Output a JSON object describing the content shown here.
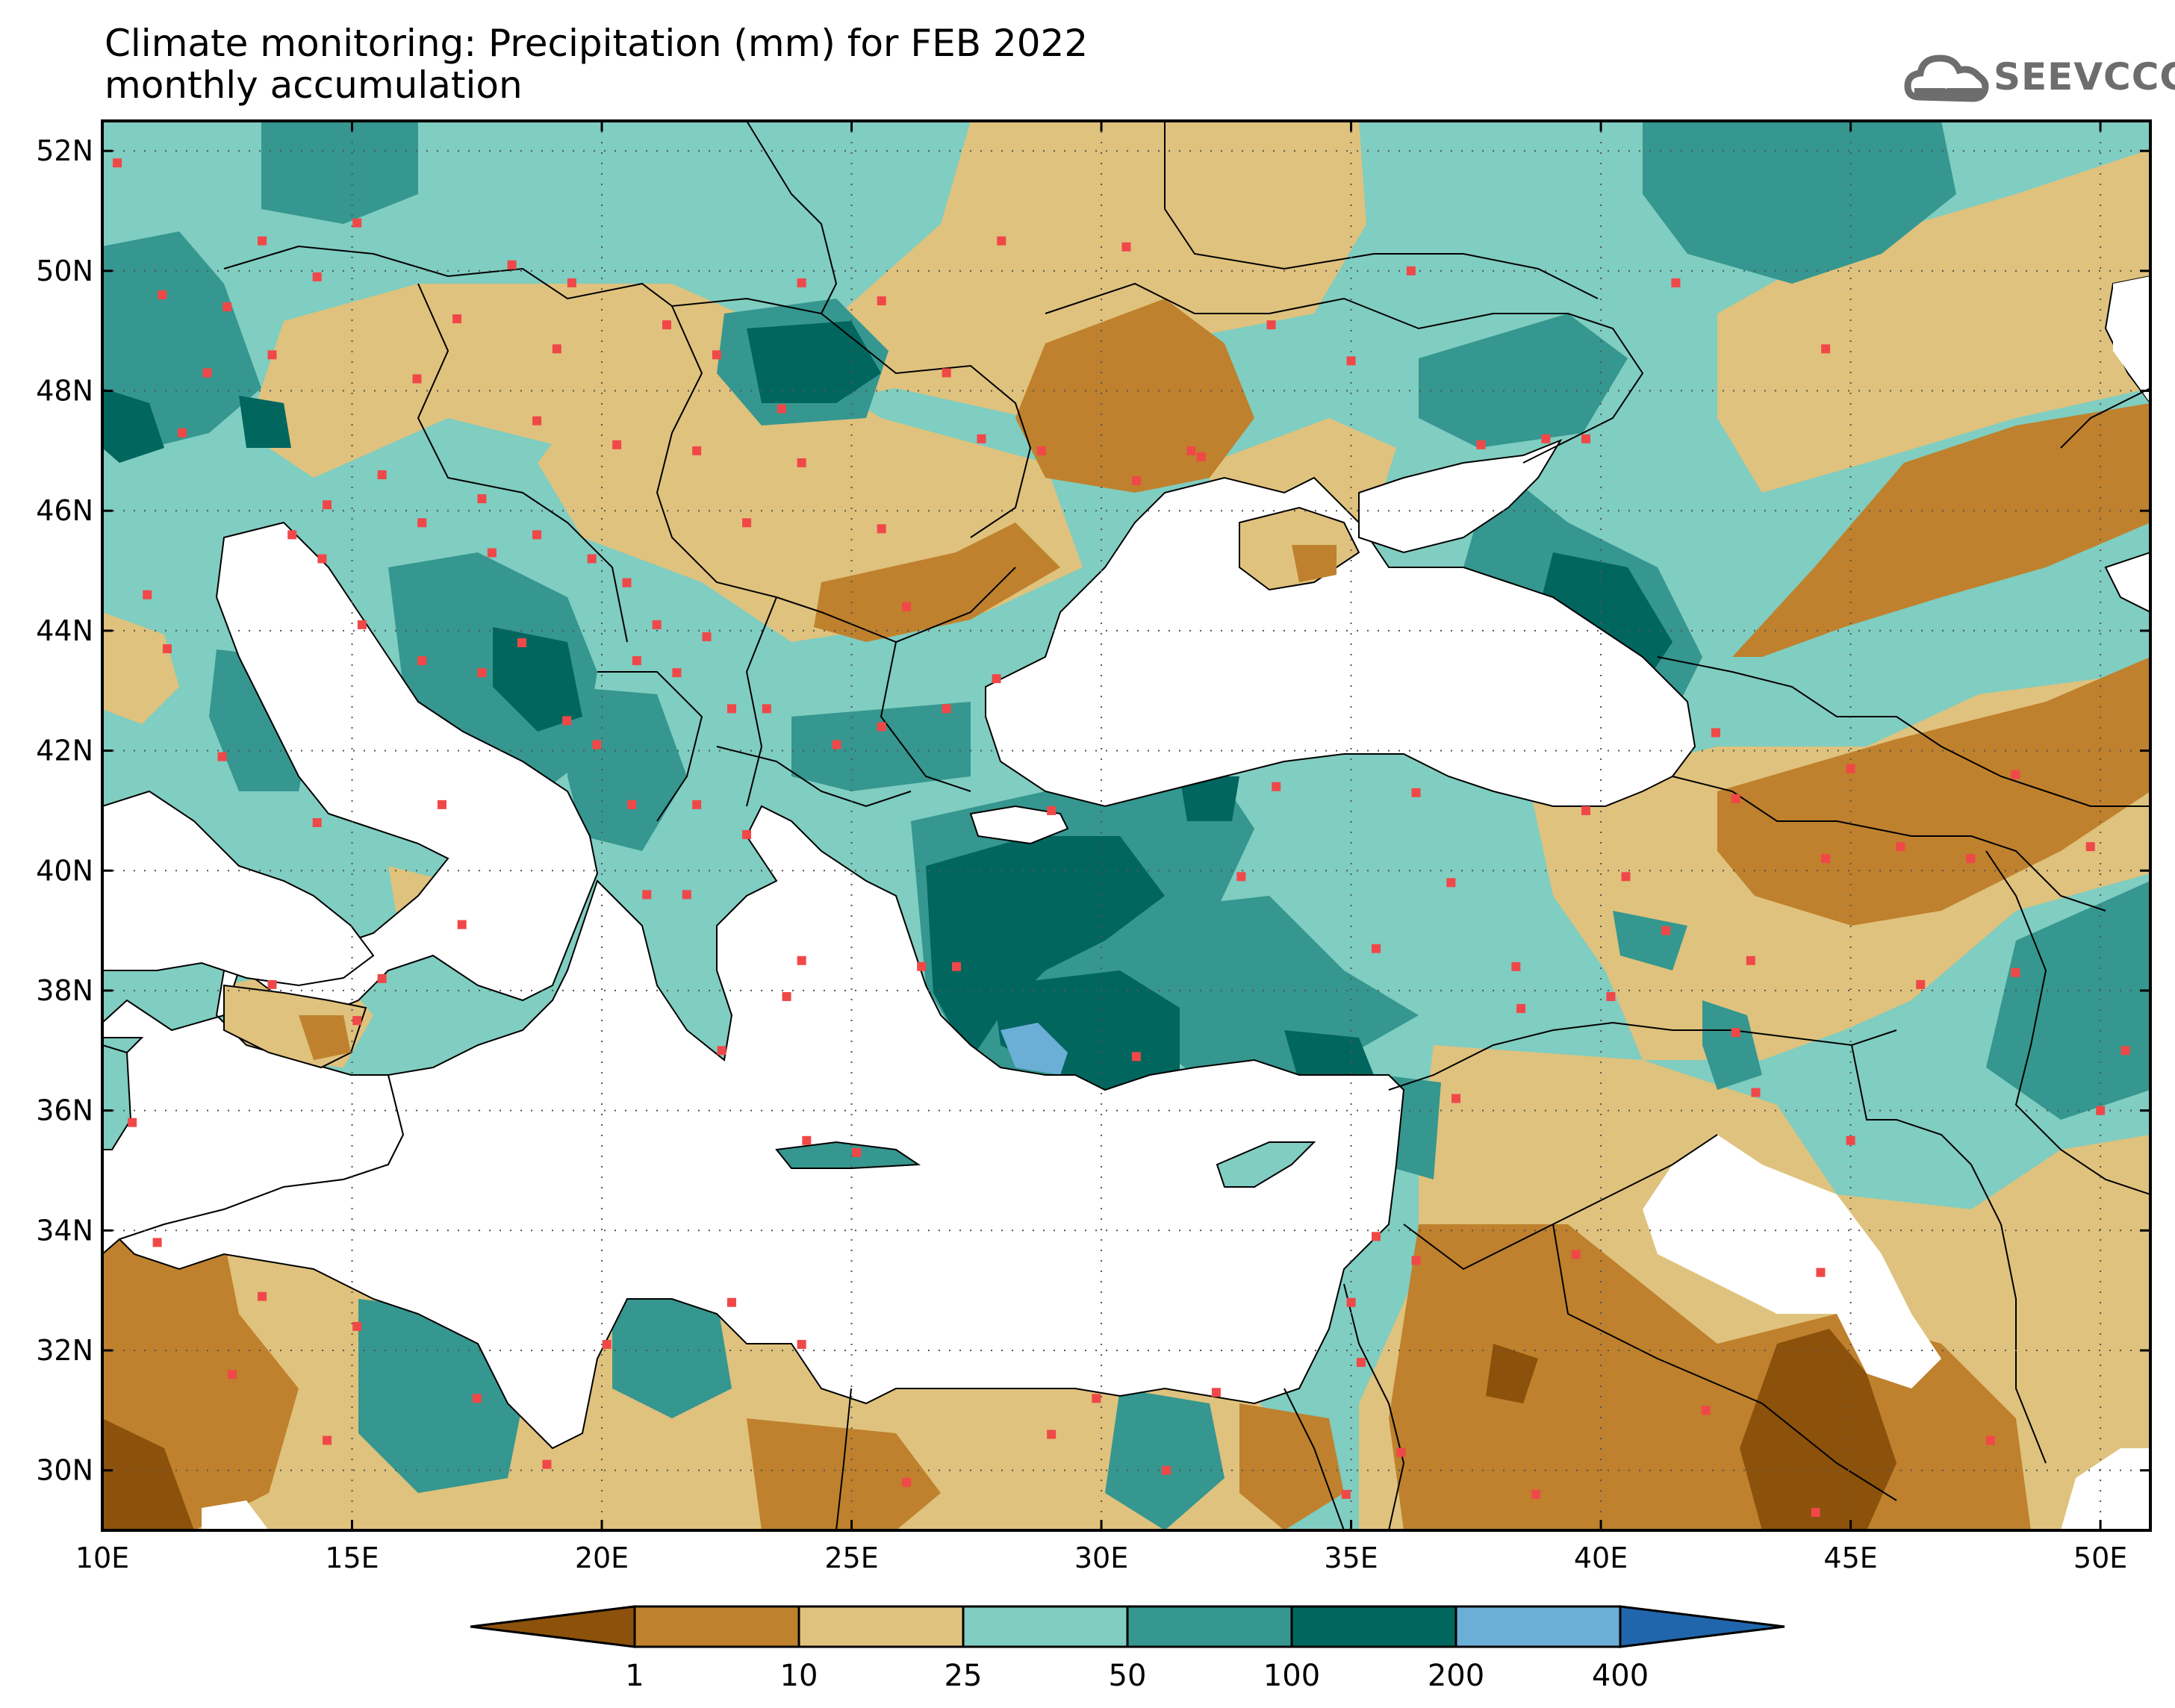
{
  "title": {
    "line1": "Climate monitoring: Precipitation (mm) for FEB 2022",
    "line2": "monthly accumulation"
  },
  "logo": {
    "text": "SEEVCCC",
    "icon": "cloud-icon"
  },
  "axes": {
    "lat_labels": [
      "52N",
      "50N",
      "48N",
      "46N",
      "44N",
      "42N",
      "40N",
      "38N",
      "36N",
      "34N",
      "32N",
      "30N"
    ],
    "lat_values": [
      52,
      50,
      48,
      46,
      44,
      42,
      40,
      38,
      36,
      34,
      32,
      30
    ],
    "lon_labels": [
      "10E",
      "15E",
      "20E",
      "25E",
      "30E",
      "35E",
      "40E",
      "45E",
      "50E"
    ],
    "lon_values": [
      10,
      15,
      20,
      25,
      30,
      35,
      40,
      45,
      50
    ],
    "lon_range": [
      10,
      51
    ],
    "lat_range": [
      29,
      52.5
    ],
    "grid": "dotted"
  },
  "colorbar": {
    "units": "mm",
    "labels": [
      "1",
      "10",
      "25",
      "50",
      "100",
      "200",
      "400"
    ],
    "colors": [
      "#8c510a",
      "#bf812d",
      "#dfc27d",
      "#80cdc1",
      "#35978f",
      "#01665e",
      "#6baed6",
      "#2166ac"
    ]
  },
  "colors": {
    "station_marker": "#f04848",
    "land_default": "#80cdc1",
    "water": "#ffffff"
  }
}
